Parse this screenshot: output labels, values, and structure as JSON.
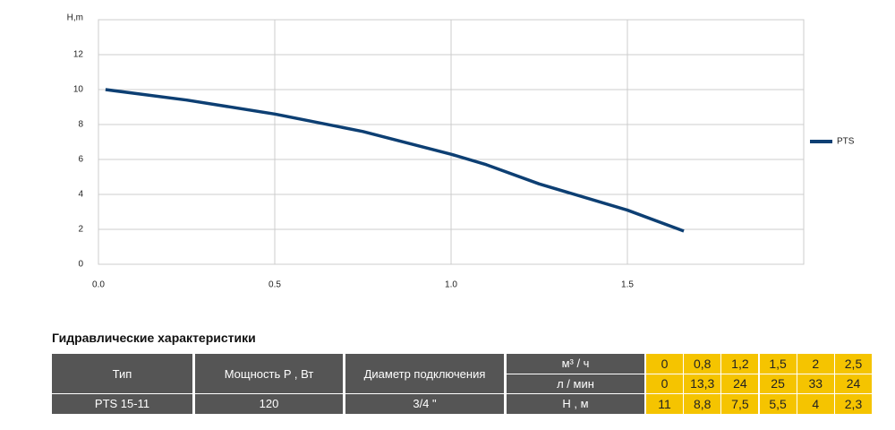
{
  "chart_data": {
    "type": "line",
    "y_label": "H,m",
    "x": [
      0.02,
      0.25,
      0.5,
      0.75,
      1.0,
      1.1,
      1.25,
      1.5,
      1.66
    ],
    "series": [
      {
        "name": "PTS",
        "color": "#0d3f73",
        "values": [
          10,
          9.4,
          8.6,
          7.6,
          6.3,
          5.7,
          4.6,
          3.1,
          1.9
        ]
      }
    ],
    "xlim": [
      0,
      2
    ],
    "xticks": [
      {
        "value": 0,
        "label": "0.0"
      },
      0.5,
      {
        "value": 1,
        "label": "1.0"
      },
      1.5
    ],
    "ylim": [
      0,
      14
    ],
    "yticks": [
      0,
      2,
      4,
      6,
      8,
      10,
      12
    ],
    "grid": true,
    "legend": "right"
  },
  "table": {
    "title": "Гидравлические характеристики",
    "columns": [
      "Тип",
      "Мощность P , Вт",
      "Диаметр подключения"
    ],
    "model": [
      "PTS 15-11",
      "120",
      "3/4 \""
    ],
    "rows": [
      {
        "unit": "м³ / ч",
        "values": [
          "0",
          "0,8",
          "1,2",
          "1,5",
          "2",
          "2,5"
        ]
      },
      {
        "unit": "л / мин",
        "values": [
          "0",
          "13,3",
          "24",
          "25",
          "33",
          "24"
        ]
      },
      {
        "unit": "Н , м",
        "values": [
          "11",
          "8,8",
          "7,5",
          "5,5",
          "4",
          "2,3"
        ]
      }
    ]
  }
}
